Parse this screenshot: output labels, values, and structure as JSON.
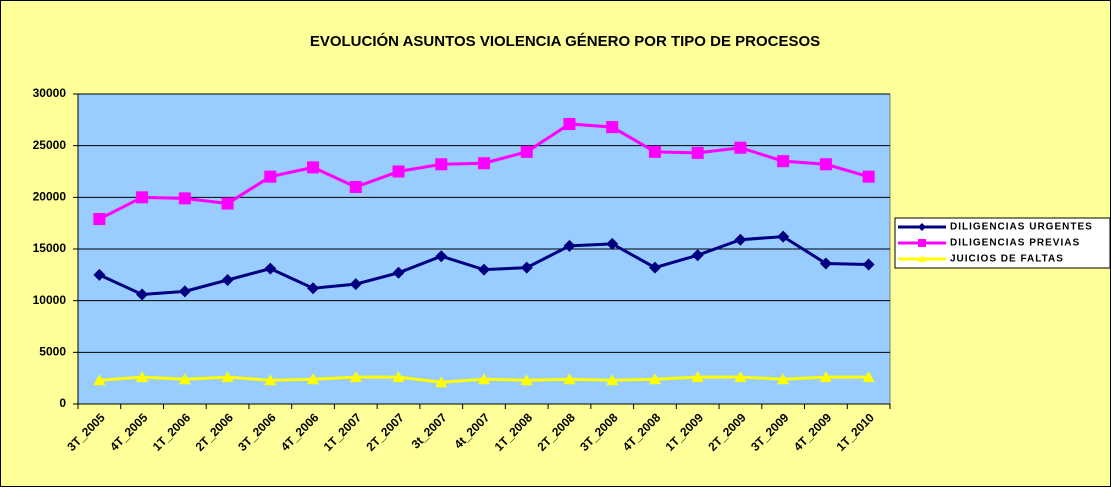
{
  "chart_data": {
    "type": "line",
    "title": "EVOLUCIÓN ASUNTOS VIOLENCIA GÉNERO POR TIPO DE PROCESOS",
    "categories": [
      "3T_2005",
      "4T_2005",
      "1T_2006",
      "2T_2006",
      "3T_2006",
      "4T_2006",
      "1T_2007",
      "2T_2007",
      "3t_2007",
      "4t_2007",
      "1T_2008",
      "2T_2008",
      "3T_2008",
      "4T_2008",
      "1T_2009",
      "2T_2009",
      "3T_2009",
      "4T_2009",
      "1T_2010"
    ],
    "series": [
      {
        "name": "DILIGENCIAS URGENTES",
        "color": "#000080",
        "marker": "diamond",
        "values": [
          12500,
          10600,
          10900,
          12000,
          13100,
          11200,
          11600,
          12700,
          14300,
          13000,
          13200,
          15300,
          15500,
          13200,
          14400,
          15900,
          16200,
          13600,
          13500
        ]
      },
      {
        "name": "DILIGENCIAS PREVIAS",
        "color": "#ff00ff",
        "marker": "square",
        "values": [
          17900,
          20000,
          19900,
          19400,
          22000,
          22900,
          21000,
          22500,
          23200,
          23300,
          24400,
          27100,
          26800,
          24400,
          24300,
          24800,
          23500,
          23200,
          22000
        ]
      },
      {
        "name": "JUICIOS DE FALTAS",
        "color": "#ffff00",
        "marker": "triangle",
        "values": [
          2300,
          2600,
          2400,
          2600,
          2300,
          2400,
          2600,
          2600,
          2100,
          2400,
          2300,
          2400,
          2300,
          2400,
          2600,
          2600,
          2400,
          2600,
          2600
        ]
      }
    ],
    "ylim": [
      0,
      30000
    ],
    "yticks": [
      0,
      5000,
      10000,
      15000,
      20000,
      25000,
      30000
    ],
    "grid": true,
    "legend": "right"
  }
}
